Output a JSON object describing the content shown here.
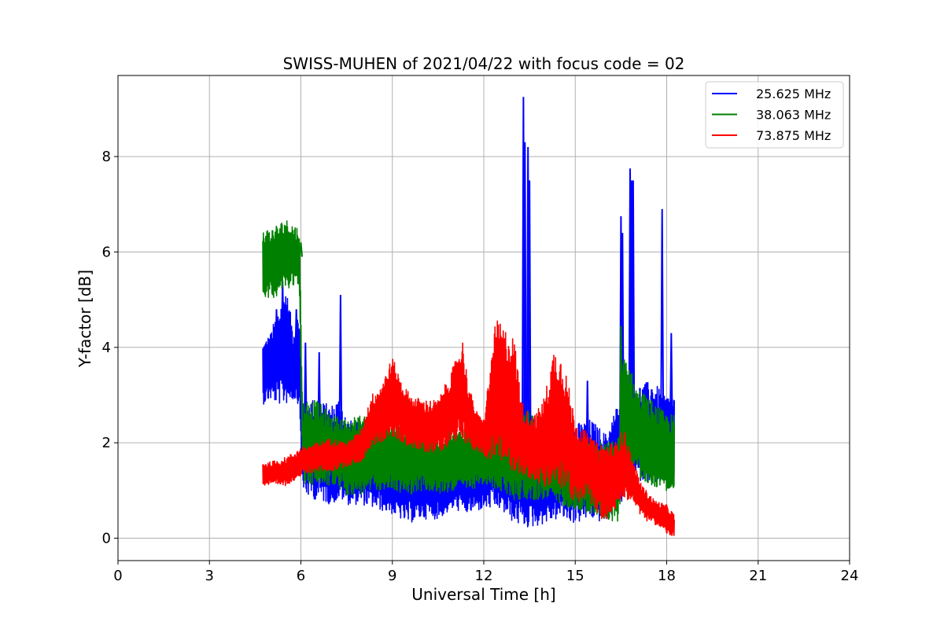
{
  "chart_data": {
    "type": "line",
    "title": "SWISS-MUHEN of 2021/04/22 with focus code = 02",
    "xlabel": "Universal Time [h]",
    "ylabel": "Y-factor [dB]",
    "xlim": [
      0,
      24
    ],
    "ylim": [
      -0.47,
      9.7
    ],
    "xticks": [
      0,
      3,
      6,
      9,
      12,
      15,
      18,
      21,
      24
    ],
    "yticks": [
      0,
      2,
      4,
      6,
      8
    ],
    "grid": true,
    "legend_position": "top-right",
    "series": [
      {
        "name": "25.625 MHz",
        "color": "#0000ff",
        "band": [
          [
            4.75,
            2.8,
            4.1
          ],
          [
            5.0,
            2.9,
            4.3
          ],
          [
            5.25,
            2.8,
            4.8
          ],
          [
            5.5,
            2.8,
            5.3
          ],
          [
            5.75,
            2.9,
            4.4
          ],
          [
            5.95,
            2.8,
            4.8
          ],
          [
            6.05,
            0.9,
            3.0
          ],
          [
            6.5,
            0.8,
            2.9
          ],
          [
            7.0,
            0.7,
            2.8
          ],
          [
            7.3,
            0.8,
            3.0
          ],
          [
            7.5,
            0.7,
            2.5
          ],
          [
            8.0,
            0.7,
            2.4
          ],
          [
            8.5,
            0.6,
            2.2
          ],
          [
            9.0,
            0.5,
            2.1
          ],
          [
            9.5,
            0.3,
            2.0
          ],
          [
            10.0,
            0.4,
            2.2
          ],
          [
            10.5,
            0.4,
            1.9
          ],
          [
            11.0,
            0.6,
            2.0
          ],
          [
            11.5,
            0.5,
            2.1
          ],
          [
            12.0,
            0.6,
            2.3
          ],
          [
            12.5,
            0.6,
            2.4
          ],
          [
            13.0,
            0.3,
            2.5
          ],
          [
            13.5,
            0.2,
            2.6
          ],
          [
            14.0,
            0.3,
            2.4
          ],
          [
            14.5,
            0.4,
            2.6
          ],
          [
            15.0,
            0.3,
            2.4
          ],
          [
            15.5,
            0.4,
            2.5
          ],
          [
            16.0,
            0.3,
            2.2
          ],
          [
            16.5,
            0.7,
            3.0
          ],
          [
            17.0,
            1.2,
            3.2
          ],
          [
            17.5,
            1.2,
            3.3
          ],
          [
            18.0,
            1.1,
            3.0
          ],
          [
            18.25,
            1.2,
            3.0
          ]
        ],
        "spikes": [
          [
            5.2,
            4.8
          ],
          [
            5.4,
            5.4
          ],
          [
            5.85,
            4.8
          ],
          [
            6.15,
            4.1
          ],
          [
            6.6,
            3.9
          ],
          [
            7.3,
            5.1
          ],
          [
            13.3,
            9.25
          ],
          [
            13.35,
            8.3
          ],
          [
            13.45,
            8.2
          ],
          [
            13.5,
            7.5
          ],
          [
            14.2,
            3.0
          ],
          [
            15.4,
            3.3
          ],
          [
            16.5,
            6.75
          ],
          [
            16.55,
            6.4
          ],
          [
            16.8,
            7.75
          ],
          [
            16.85,
            7.5
          ],
          [
            16.9,
            7.5
          ],
          [
            17.85,
            6.9
          ],
          [
            18.15,
            4.3
          ]
        ]
      },
      {
        "name": "38.063 MHz",
        "color": "#008000",
        "band": [
          [
            4.75,
            5.1,
            6.5
          ],
          [
            5.0,
            5.0,
            6.5
          ],
          [
            5.25,
            5.1,
            6.6
          ],
          [
            5.5,
            5.2,
            6.7
          ],
          [
            5.75,
            5.3,
            6.6
          ],
          [
            5.95,
            5.3,
            6.5
          ],
          [
            6.05,
            1.1,
            2.9
          ],
          [
            6.5,
            1.1,
            2.9
          ],
          [
            7.0,
            1.1,
            2.6
          ],
          [
            7.5,
            0.9,
            2.5
          ],
          [
            8.0,
            0.9,
            2.6
          ],
          [
            8.5,
            1.0,
            2.3
          ],
          [
            9.0,
            1.0,
            2.5
          ],
          [
            9.5,
            0.9,
            2.3
          ],
          [
            10.0,
            1.0,
            2.4
          ],
          [
            10.5,
            0.9,
            2.2
          ],
          [
            11.0,
            1.0,
            2.3
          ],
          [
            11.5,
            1.0,
            2.3
          ],
          [
            12.0,
            1.1,
            2.4
          ],
          [
            12.5,
            1.0,
            2.5
          ],
          [
            13.0,
            0.8,
            2.6
          ],
          [
            13.5,
            0.8,
            2.7
          ],
          [
            14.0,
            0.8,
            2.5
          ],
          [
            14.5,
            0.7,
            2.4
          ],
          [
            15.0,
            0.6,
            2.2
          ],
          [
            15.5,
            0.5,
            2.0
          ],
          [
            16.0,
            0.4,
            2.0
          ],
          [
            16.4,
            0.3,
            2.1
          ],
          [
            16.6,
            1.5,
            4.0
          ],
          [
            17.0,
            1.3,
            3.2
          ],
          [
            17.5,
            1.1,
            2.9
          ],
          [
            18.0,
            1.0,
            2.6
          ],
          [
            18.25,
            0.9,
            2.6
          ]
        ],
        "spikes": [
          [
            6.0,
            6.2
          ],
          [
            16.5,
            4.45
          ],
          [
            16.7,
            3.3
          ]
        ]
      },
      {
        "name": "73.875 MHz",
        "color": "#ff0000",
        "band": [
          [
            4.75,
            1.1,
            1.6
          ],
          [
            5.0,
            1.1,
            1.6
          ],
          [
            5.5,
            1.1,
            1.7
          ],
          [
            6.0,
            1.3,
            1.9
          ],
          [
            6.5,
            1.4,
            2.0
          ],
          [
            7.0,
            1.4,
            2.1
          ],
          [
            7.5,
            1.5,
            2.0
          ],
          [
            8.0,
            1.6,
            2.3
          ],
          [
            8.3,
            1.9,
            3.0
          ],
          [
            8.6,
            2.0,
            3.2
          ],
          [
            9.0,
            2.1,
            3.8
          ],
          [
            9.3,
            2.0,
            3.3
          ],
          [
            9.6,
            1.9,
            3.0
          ],
          [
            10.0,
            1.8,
            2.9
          ],
          [
            10.5,
            1.8,
            2.9
          ],
          [
            11.0,
            2.0,
            3.6
          ],
          [
            11.3,
            2.1,
            4.2
          ],
          [
            11.5,
            1.9,
            3.2
          ],
          [
            11.8,
            1.8,
            2.6
          ],
          [
            12.0,
            1.7,
            2.5
          ],
          [
            12.4,
            1.6,
            4.6
          ],
          [
            12.7,
            1.5,
            4.4
          ],
          [
            13.0,
            1.4,
            4.2
          ],
          [
            13.3,
            1.3,
            2.7
          ],
          [
            13.7,
            1.2,
            2.6
          ],
          [
            14.0,
            1.0,
            3.0
          ],
          [
            14.3,
            1.1,
            4.0
          ],
          [
            14.6,
            1.0,
            3.8
          ],
          [
            15.0,
            0.7,
            2.5
          ],
          [
            15.4,
            0.9,
            2.2
          ],
          [
            15.7,
            0.5,
            2.0
          ],
          [
            16.0,
            0.3,
            2.0
          ],
          [
            16.3,
            0.6,
            2.0
          ],
          [
            16.6,
            0.8,
            2.3
          ],
          [
            16.9,
            0.8,
            1.6
          ],
          [
            17.2,
            0.4,
            1.1
          ],
          [
            17.6,
            0.3,
            0.8
          ],
          [
            18.0,
            0.1,
            0.7
          ],
          [
            18.25,
            0.0,
            0.5
          ]
        ],
        "spikes": []
      }
    ]
  }
}
